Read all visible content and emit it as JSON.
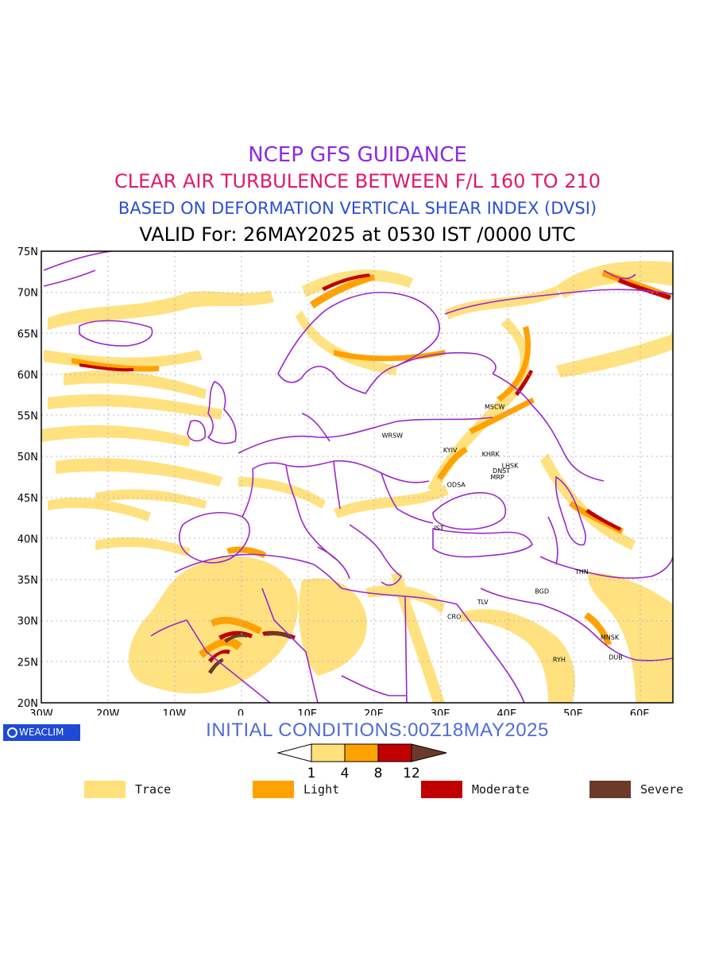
{
  "titles": {
    "line1": "NCEP GFS GUIDANCE",
    "line2": "CLEAR AIR TURBULENCE BETWEEN F/L 160 TO 210",
    "line3": "BASED ON DEFORMATION VERTICAL SHEAR INDEX (DVSI)",
    "line4": "VALID For: 26MAY2025 at 0530 IST /0000 UTC"
  },
  "map": {
    "lat_labels": [
      "75N",
      "70N",
      "65N",
      "60N",
      "55N",
      "50N",
      "45N",
      "40N",
      "35N",
      "30N",
      "25N",
      "20N"
    ],
    "lon_labels": [
      "30W",
      "20W",
      "10W",
      "0",
      "10E",
      "20E",
      "30E",
      "40E",
      "50E",
      "60E"
    ],
    "lon_range": [
      -30,
      65
    ],
    "lat_range": [
      20,
      75
    ],
    "cities": [
      {
        "code": "MSCW",
        "lon": 38.2,
        "lat": 55.8
      },
      {
        "code": "WRSW",
        "lon": 22.8,
        "lat": 52.3
      },
      {
        "code": "KYIV",
        "lon": 31.5,
        "lat": 50.5
      },
      {
        "code": "KHRK",
        "lon": 37.6,
        "lat": 50.0
      },
      {
        "code": "LHSK",
        "lon": 40.5,
        "lat": 48.6
      },
      {
        "code": "DNST",
        "lon": 39.2,
        "lat": 48.0
      },
      {
        "code": "MRP",
        "lon": 38.6,
        "lat": 47.2
      },
      {
        "code": "ODSA",
        "lon": 32.4,
        "lat": 46.3
      },
      {
        "code": "IST",
        "lon": 29.8,
        "lat": 41.0
      },
      {
        "code": "THN",
        "lon": 51.3,
        "lat": 35.7
      },
      {
        "code": "BGD",
        "lon": 45.3,
        "lat": 33.3
      },
      {
        "code": "TLV",
        "lon": 36.4,
        "lat": 32.0
      },
      {
        "code": "CRO",
        "lon": 32.1,
        "lat": 30.2
      },
      {
        "code": "MNSK",
        "lon": 55.5,
        "lat": 27.7
      },
      {
        "code": "RYH",
        "lon": 47.9,
        "lat": 25.0
      },
      {
        "code": "DUB",
        "lon": 56.4,
        "lat": 25.3
      }
    ]
  },
  "initial_conditions": "INITIAL CONDITIONS:00Z18MAY2025",
  "logo_text": "WEACLIM",
  "colorbar": {
    "ticks": [
      "1",
      "4",
      "8",
      "12"
    ],
    "colors": [
      "#ffe07a",
      "#ffa100",
      "#c00000",
      "#6b3a2a"
    ]
  },
  "legend": [
    {
      "label": "Trace",
      "color": "#ffe07a"
    },
    {
      "label": "Light",
      "color": "#ffa100"
    },
    {
      "label": "Moderate",
      "color": "#c00000"
    },
    {
      "label": "Severe",
      "color": "#6b3a2a"
    }
  ],
  "colors": {
    "border": "#9b26c9",
    "grid": "#b8b8b8"
  }
}
